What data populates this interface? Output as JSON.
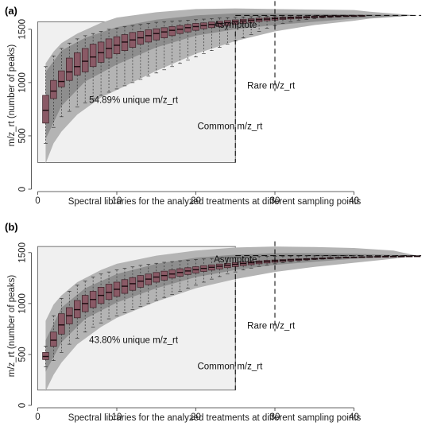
{
  "chart_data": [
    {
      "type": "boxplot",
      "panel": "(a)",
      "xlabel": "Spectral libraries for the analyzed treatments at different sampling points",
      "ylabel": "m/z_rt (number of peaks)",
      "xlim": [
        0,
        50
      ],
      "ylim": [
        0,
        1700
      ],
      "xticks": [
        0,
        10,
        20,
        30,
        40
      ],
      "yticks": [
        0,
        500,
        1000,
        1500
      ],
      "asymptote": 1630,
      "annotations": {
        "asymptote": "Asymptote",
        "unique": "54.89% unique m/z_rt",
        "common": "Common m/z_rt",
        "rare": "Rare m/z_rt"
      },
      "common_box": {
        "x": [
          0,
          25
        ],
        "y": [
          250,
          1570
        ]
      },
      "rare_line_x": 30,
      "asymptote_line_x": 25,
      "boxes": [
        {
          "x": 1,
          "q1": 620,
          "med": 740,
          "q3": 880,
          "lo": 430,
          "hi": 1150
        },
        {
          "x": 2,
          "q1": 850,
          "med": 920,
          "q3": 1020,
          "lo": 580,
          "hi": 1250
        },
        {
          "x": 3,
          "q1": 960,
          "med": 1010,
          "q3": 1110,
          "lo": 680,
          "hi": 1320
        },
        {
          "x": 4,
          "q1": 1020,
          "med": 1100,
          "q3": 1230,
          "lo": 730,
          "hi": 1370
        },
        {
          "x": 5,
          "q1": 1070,
          "med": 1150,
          "q3": 1280,
          "lo": 770,
          "hi": 1410
        },
        {
          "x": 6,
          "q1": 1100,
          "med": 1200,
          "q3": 1320,
          "lo": 810,
          "hi": 1440
        },
        {
          "x": 7,
          "q1": 1150,
          "med": 1240,
          "q3": 1360,
          "lo": 850,
          "hi": 1460
        },
        {
          "x": 8,
          "q1": 1190,
          "med": 1280,
          "q3": 1380,
          "lo": 880,
          "hi": 1480
        },
        {
          "x": 9,
          "q1": 1230,
          "med": 1320,
          "q3": 1410,
          "lo": 910,
          "hi": 1500
        },
        {
          "x": 10,
          "q1": 1270,
          "med": 1350,
          "q3": 1430,
          "lo": 940,
          "hi": 1510
        },
        {
          "x": 11,
          "q1": 1300,
          "med": 1380,
          "q3": 1450,
          "lo": 970,
          "hi": 1525
        },
        {
          "x": 12,
          "q1": 1330,
          "med": 1400,
          "q3": 1470,
          "lo": 1000,
          "hi": 1535
        },
        {
          "x": 13,
          "q1": 1360,
          "med": 1420,
          "q3": 1480,
          "lo": 1030,
          "hi": 1545
        },
        {
          "x": 14,
          "q1": 1380,
          "med": 1440,
          "q3": 1495,
          "lo": 1060,
          "hi": 1555
        },
        {
          "x": 15,
          "q1": 1400,
          "med": 1460,
          "q3": 1505,
          "lo": 1090,
          "hi": 1565
        },
        {
          "x": 16,
          "q1": 1420,
          "med": 1475,
          "q3": 1515,
          "lo": 1120,
          "hi": 1570
        },
        {
          "x": 17,
          "q1": 1440,
          "med": 1490,
          "q3": 1525,
          "lo": 1150,
          "hi": 1575
        },
        {
          "x": 18,
          "q1": 1460,
          "med": 1500,
          "q3": 1535,
          "lo": 1180,
          "hi": 1580
        },
        {
          "x": 19,
          "q1": 1475,
          "med": 1515,
          "q3": 1545,
          "lo": 1210,
          "hi": 1585
        },
        {
          "x": 20,
          "q1": 1490,
          "med": 1525,
          "q3": 1555,
          "lo": 1240,
          "hi": 1590
        },
        {
          "x": 21,
          "q1": 1505,
          "med": 1535,
          "q3": 1560,
          "lo": 1270,
          "hi": 1595
        },
        {
          "x": 22,
          "q1": 1515,
          "med": 1545,
          "q3": 1568,
          "lo": 1300,
          "hi": 1600
        },
        {
          "x": 23,
          "q1": 1525,
          "med": 1555,
          "q3": 1575,
          "lo": 1330,
          "hi": 1605
        },
        {
          "x": 24,
          "q1": 1535,
          "med": 1562,
          "q3": 1582,
          "lo": 1360,
          "hi": 1608
        },
        {
          "x": 25,
          "q1": 1545,
          "med": 1570,
          "q3": 1588,
          "lo": 1390,
          "hi": 1612
        },
        {
          "x": 26,
          "q1": 1555,
          "med": 1578,
          "q3": 1594,
          "lo": 1420,
          "hi": 1615
        },
        {
          "x": 27,
          "q1": 1565,
          "med": 1585,
          "q3": 1598,
          "lo": 1450,
          "hi": 1618
        },
        {
          "x": 28,
          "q1": 1572,
          "med": 1590,
          "q3": 1603,
          "lo": 1480,
          "hi": 1620
        },
        {
          "x": 29,
          "q1": 1580,
          "med": 1595,
          "q3": 1607,
          "lo": 1510,
          "hi": 1622
        },
        {
          "x": 30,
          "q1": 1586,
          "med": 1600,
          "q3": 1610,
          "lo": 1535,
          "hi": 1624
        },
        {
          "x": 31,
          "q1": 1592,
          "med": 1604,
          "q3": 1613,
          "lo": 1555,
          "hi": 1626
        },
        {
          "x": 32,
          "q1": 1597,
          "med": 1608,
          "q3": 1616,
          "lo": 1570,
          "hi": 1627
        },
        {
          "x": 33,
          "q1": 1601,
          "med": 1611,
          "q3": 1618,
          "lo": 1582,
          "hi": 1628
        },
        {
          "x": 34,
          "q1": 1605,
          "med": 1614,
          "q3": 1620,
          "lo": 1592,
          "hi": 1629
        },
        {
          "x": 35,
          "q1": 1608,
          "med": 1616,
          "q3": 1622,
          "lo": 1600,
          "hi": 1629
        },
        {
          "x": 36,
          "q1": 1611,
          "med": 1618,
          "q3": 1624,
          "lo": 1606,
          "hi": 1630
        },
        {
          "x": 37,
          "q1": 1614,
          "med": 1620,
          "q3": 1625,
          "lo": 1610,
          "hi": 1630
        },
        {
          "x": 38,
          "q1": 1616,
          "med": 1622,
          "q3": 1626,
          "lo": 1614,
          "hi": 1630
        },
        {
          "x": 39,
          "q1": 1618,
          "med": 1624,
          "q3": 1627,
          "lo": 1617,
          "hi": 1630
        },
        {
          "x": 40,
          "q1": 1620,
          "med": 1625,
          "q3": 1628,
          "lo": 1619,
          "hi": 1630
        },
        {
          "x": 41,
          "q1": 1622,
          "med": 1626,
          "q3": 1629,
          "lo": 1621,
          "hi": 1630
        }
      ],
      "outer_band": {
        "x": [
          1,
          2,
          3,
          5,
          8,
          10,
          15,
          20,
          25,
          30,
          35,
          40,
          42,
          48
        ],
        "low": [
          240,
          430,
          540,
          700,
          860,
          930,
          1110,
          1270,
          1390,
          1480,
          1540,
          1580,
          1600,
          1630
        ],
        "high": [
          1180,
          1290,
          1370,
          1460,
          1560,
          1610,
          1660,
          1690,
          1695,
          1690,
          1685,
          1680,
          1665,
          1630
        ]
      },
      "inner_band": {
        "x": [
          1,
          3,
          6,
          10,
          15,
          20,
          25,
          30,
          35,
          40,
          48
        ],
        "low": [
          470,
          780,
          1010,
          1170,
          1330,
          1440,
          1500,
          1540,
          1570,
          1600,
          1630
        ],
        "high": [
          1100,
          1300,
          1420,
          1520,
          1590,
          1630,
          1650,
          1650,
          1645,
          1640,
          1630
        ]
      }
    },
    {
      "type": "boxplot",
      "panel": "(b)",
      "xlabel": "Spectral libraries for the analyzed treatments at different sampling points",
      "ylabel": "m/z_rt (number of peaks)",
      "xlim": [
        0,
        50
      ],
      "ylim": [
        0,
        1600
      ],
      "xticks": [
        0,
        10,
        20,
        30,
        40
      ],
      "yticks": [
        0,
        500,
        1000,
        1500
      ],
      "asymptote": 1470,
      "annotations": {
        "asymptote": "Asymptote",
        "unique": "43.80% unique m/z_rt",
        "common": "Common m/z_rt",
        "rare": "Rare m/z_rt"
      },
      "common_box": {
        "x": [
          0,
          25
        ],
        "y": [
          150,
          1560
        ]
      },
      "rare_line_x": 30,
      "asymptote_line_x": 25,
      "boxes": [
        {
          "x": 1,
          "q1": 450,
          "med": 480,
          "q3": 520,
          "lo": 380,
          "hi": 580
        },
        {
          "x": 2,
          "q1": 580,
          "med": 640,
          "q3": 720,
          "lo": 440,
          "hi": 880
        },
        {
          "x": 3,
          "q1": 700,
          "med": 790,
          "q3": 900,
          "lo": 520,
          "hi": 1050
        },
        {
          "x": 4,
          "q1": 800,
          "med": 880,
          "q3": 960,
          "lo": 600,
          "hi": 1120
        },
        {
          "x": 5,
          "q1": 860,
          "med": 940,
          "q3": 1030,
          "lo": 660,
          "hi": 1180
        },
        {
          "x": 6,
          "q1": 920,
          "med": 1000,
          "q3": 1080,
          "lo": 720,
          "hi": 1220
        },
        {
          "x": 7,
          "q1": 960,
          "med": 1040,
          "q3": 1120,
          "lo": 770,
          "hi": 1260
        },
        {
          "x": 8,
          "q1": 1000,
          "med": 1080,
          "q3": 1160,
          "lo": 810,
          "hi": 1290
        },
        {
          "x": 9,
          "q1": 1040,
          "med": 1110,
          "q3": 1190,
          "lo": 850,
          "hi": 1310
        },
        {
          "x": 10,
          "q1": 1070,
          "med": 1140,
          "q3": 1210,
          "lo": 880,
          "hi": 1330
        },
        {
          "x": 11,
          "q1": 1100,
          "med": 1170,
          "q3": 1235,
          "lo": 910,
          "hi": 1345
        },
        {
          "x": 12,
          "q1": 1130,
          "med": 1195,
          "q3": 1255,
          "lo": 940,
          "hi": 1360
        },
        {
          "x": 13,
          "q1": 1160,
          "med": 1220,
          "q3": 1275,
          "lo": 970,
          "hi": 1375
        },
        {
          "x": 14,
          "q1": 1185,
          "med": 1240,
          "q3": 1290,
          "lo": 1000,
          "hi": 1385
        },
        {
          "x": 15,
          "q1": 1210,
          "med": 1260,
          "q3": 1305,
          "lo": 1030,
          "hi": 1395
        },
        {
          "x": 16,
          "q1": 1230,
          "med": 1275,
          "q3": 1318,
          "lo": 1060,
          "hi": 1405
        },
        {
          "x": 17,
          "q1": 1250,
          "med": 1290,
          "q3": 1330,
          "lo": 1090,
          "hi": 1412
        },
        {
          "x": 18,
          "q1": 1268,
          "med": 1305,
          "q3": 1342,
          "lo": 1120,
          "hi": 1420
        },
        {
          "x": 19,
          "q1": 1285,
          "med": 1320,
          "q3": 1352,
          "lo": 1150,
          "hi": 1426
        },
        {
          "x": 20,
          "q1": 1300,
          "med": 1332,
          "q3": 1362,
          "lo": 1180,
          "hi": 1432
        },
        {
          "x": 21,
          "q1": 1315,
          "med": 1345,
          "q3": 1372,
          "lo": 1210,
          "hi": 1438
        },
        {
          "x": 22,
          "q1": 1328,
          "med": 1356,
          "q3": 1380,
          "lo": 1240,
          "hi": 1443
        },
        {
          "x": 23,
          "q1": 1340,
          "med": 1366,
          "q3": 1388,
          "lo": 1265,
          "hi": 1447
        },
        {
          "x": 24,
          "q1": 1352,
          "med": 1376,
          "q3": 1395,
          "lo": 1290,
          "hi": 1451
        },
        {
          "x": 25,
          "q1": 1362,
          "med": 1385,
          "q3": 1402,
          "lo": 1310,
          "hi": 1454
        },
        {
          "x": 26,
          "q1": 1372,
          "med": 1393,
          "q3": 1408,
          "lo": 1330,
          "hi": 1457
        },
        {
          "x": 27,
          "q1": 1381,
          "med": 1400,
          "q3": 1414,
          "lo": 1348,
          "hi": 1459
        },
        {
          "x": 28,
          "q1": 1390,
          "med": 1407,
          "q3": 1419,
          "lo": 1364,
          "hi": 1461
        },
        {
          "x": 29,
          "q1": 1398,
          "med": 1413,
          "q3": 1424,
          "lo": 1378,
          "hi": 1463
        },
        {
          "x": 30,
          "q1": 1405,
          "med": 1419,
          "q3": 1428,
          "lo": 1390,
          "hi": 1464
        },
        {
          "x": 31,
          "q1": 1412,
          "med": 1424,
          "q3": 1432,
          "lo": 1401,
          "hi": 1465
        },
        {
          "x": 32,
          "q1": 1418,
          "med": 1429,
          "q3": 1436,
          "lo": 1410,
          "hi": 1466
        },
        {
          "x": 33,
          "q1": 1424,
          "med": 1433,
          "q3": 1439,
          "lo": 1418,
          "hi": 1467
        },
        {
          "x": 34,
          "q1": 1429,
          "med": 1437,
          "q3": 1442,
          "lo": 1425,
          "hi": 1468
        },
        {
          "x": 35,
          "q1": 1434,
          "med": 1441,
          "q3": 1445,
          "lo": 1431,
          "hi": 1468
        },
        {
          "x": 36,
          "q1": 1438,
          "med": 1444,
          "q3": 1448,
          "lo": 1436,
          "hi": 1469
        },
        {
          "x": 37,
          "q1": 1442,
          "med": 1447,
          "q3": 1451,
          "lo": 1440,
          "hi": 1469
        },
        {
          "x": 38,
          "q1": 1445,
          "med": 1450,
          "q3": 1453,
          "lo": 1444,
          "hi": 1470
        },
        {
          "x": 39,
          "q1": 1448,
          "med": 1452,
          "q3": 1455,
          "lo": 1447,
          "hi": 1470
        },
        {
          "x": 40,
          "q1": 1451,
          "med": 1454,
          "q3": 1457,
          "lo": 1450,
          "hi": 1470
        },
        {
          "x": 41,
          "q1": 1453,
          "med": 1456,
          "q3": 1459,
          "lo": 1452,
          "hi": 1470
        },
        {
          "x": 42,
          "q1": 1455,
          "med": 1458,
          "q3": 1461,
          "lo": 1454,
          "hi": 1470
        },
        {
          "x": 43,
          "q1": 1457,
          "med": 1460,
          "q3": 1462,
          "lo": 1456,
          "hi": 1470
        },
        {
          "x": 44,
          "q1": 1459,
          "med": 1461,
          "q3": 1463,
          "lo": 1458,
          "hi": 1470
        },
        {
          "x": 45,
          "q1": 1460,
          "med": 1462,
          "q3": 1464,
          "lo": 1459,
          "hi": 1470
        },
        {
          "x": 46,
          "q1": 1461,
          "med": 1463,
          "q3": 1465,
          "lo": 1460,
          "hi": 1470
        },
        {
          "x": 47,
          "q1": 1462,
          "med": 1464,
          "q3": 1466,
          "lo": 1461,
          "hi": 1470
        },
        {
          "x": 48,
          "q1": 1463,
          "med": 1465,
          "q3": 1467,
          "lo": 1462,
          "hi": 1470
        }
      ],
      "outer_band": {
        "x": [
          1,
          2,
          3,
          5,
          8,
          10,
          15,
          20,
          25,
          30,
          35,
          40,
          45,
          48
        ],
        "low": [
          140,
          300,
          420,
          600,
          770,
          860,
          1020,
          1150,
          1240,
          1310,
          1360,
          1400,
          1440,
          1470
        ],
        "high": [
          830,
          990,
          1080,
          1210,
          1330,
          1390,
          1470,
          1520,
          1550,
          1560,
          1555,
          1545,
          1520,
          1470
        ]
      },
      "inner_band": {
        "x": [
          1,
          3,
          6,
          10,
          15,
          20,
          25,
          30,
          35,
          40,
          48
        ],
        "low": [
          330,
          620,
          850,
          1010,
          1150,
          1260,
          1330,
          1380,
          1410,
          1440,
          1470
        ],
        "high": [
          640,
          960,
          1150,
          1290,
          1390,
          1450,
          1480,
          1495,
          1495,
          1490,
          1470
        ]
      }
    }
  ],
  "colors": {
    "box_fill": "#8a5a66",
    "box_stroke": "#3a1f25",
    "outer_band": "#b4b4b4",
    "inner_band": "#8e8e8e",
    "common_rect": "#f0f0f0"
  }
}
